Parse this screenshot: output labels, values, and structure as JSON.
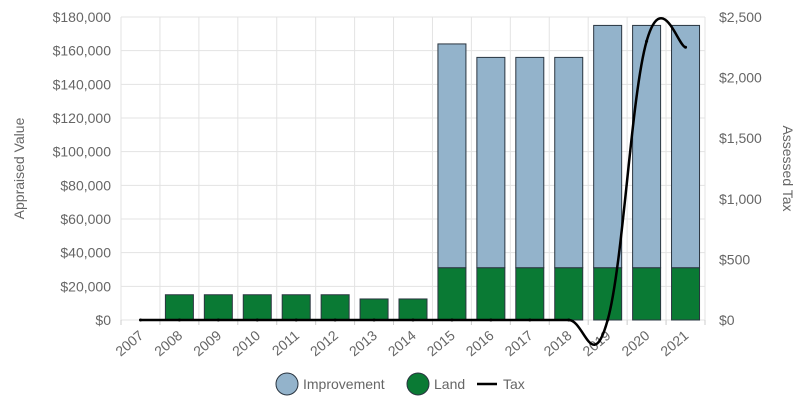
{
  "chart_data": {
    "type": "bar",
    "categories": [
      "2007",
      "2008",
      "2009",
      "2010",
      "2011",
      "2012",
      "2013",
      "2014",
      "2015",
      "2016",
      "2017",
      "2018",
      "2019",
      "2020",
      "2021"
    ],
    "series": [
      {
        "name": "Land",
        "type": "stacked-bar",
        "axis": "left",
        "values": [
          0,
          15000,
          15000,
          15000,
          15000,
          15000,
          12500,
          12500,
          31000,
          31000,
          31000,
          31000,
          31000,
          31000,
          31000
        ]
      },
      {
        "name": "Improvement",
        "type": "stacked-bar",
        "axis": "left",
        "values": [
          0,
          0,
          0,
          0,
          0,
          0,
          0,
          0,
          133000,
          125000,
          125000,
          125000,
          144000,
          144000,
          144000
        ]
      },
      {
        "name": "Tax",
        "type": "line",
        "axis": "right",
        "values": [
          0,
          0,
          0,
          0,
          0,
          0,
          0,
          0,
          0,
          0,
          0,
          0,
          0,
          2300,
          2250
        ]
      }
    ],
    "y_left": {
      "label": "Appraised Value",
      "range": [
        0,
        180000
      ],
      "ticks": [
        "$0",
        "$20,000",
        "$40,000",
        "$60,000",
        "$80,000",
        "$100,000",
        "$120,000",
        "$140,000",
        "$160,000",
        "$180,000"
      ],
      "tick_values": [
        0,
        20000,
        40000,
        60000,
        80000,
        100000,
        120000,
        140000,
        160000,
        180000
      ]
    },
    "y_right": {
      "label": "Assessed Tax",
      "range": [
        0,
        2500
      ],
      "ticks": [
        "$0",
        "$500",
        "$1,000",
        "$1,500",
        "$2,000",
        "$2,500"
      ],
      "tick_values": [
        0,
        500,
        1000,
        1500,
        2000,
        2500
      ]
    },
    "grid": true,
    "legend": {
      "position": "bottom",
      "items": [
        {
          "label": "Improvement",
          "symbol": "circle",
          "color": "#93b3cb"
        },
        {
          "label": "Land",
          "symbol": "circle",
          "color": "#0a7a34"
        },
        {
          "label": "Tax",
          "symbol": "line",
          "color": "#000000"
        }
      ]
    },
    "colors": {
      "improvement": "#93b3cb",
      "land": "#0a7a34",
      "tax": "#000000",
      "bar_border": "#2a3540",
      "grid": "#e3e3e3",
      "text": "#666666"
    }
  }
}
